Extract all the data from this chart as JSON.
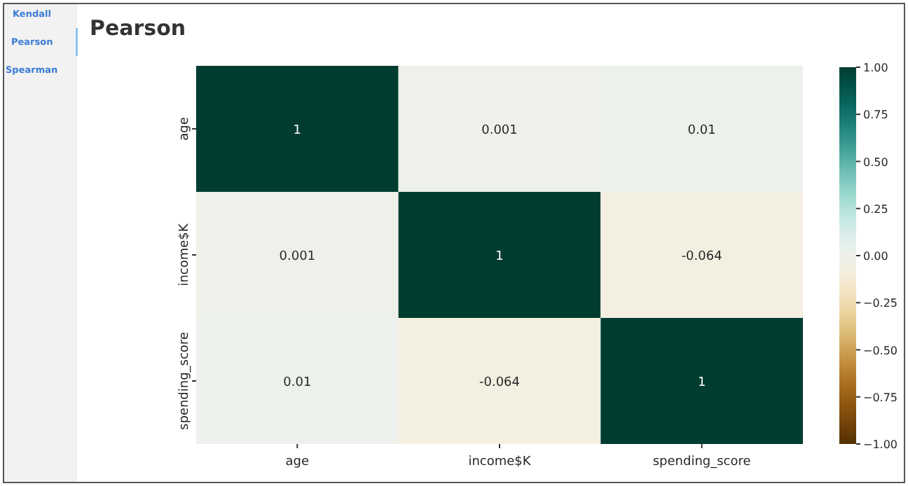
{
  "chart_data": {
    "type": "heatmap",
    "title": "Pearson",
    "categories": [
      "age",
      "income$K",
      "spending_score"
    ],
    "y_categories": [
      "age",
      "income$K",
      "spending_score"
    ],
    "cells": [
      [
        1,
        0.001,
        0.01
      ],
      [
        0.001,
        1,
        -0.064
      ],
      [
        0.01,
        -0.064,
        1
      ]
    ],
    "clim": [
      -1,
      1
    ],
    "data_labels": true,
    "cticks": [
      {
        "value": -1,
        "label": "−1.00"
      },
      {
        "value": -0.75,
        "label": "−0.75"
      },
      {
        "value": -0.5,
        "label": "−0.50"
      },
      {
        "value": -0.25,
        "label": "−0.25"
      },
      {
        "value": 0,
        "label": "0.00"
      },
      {
        "value": 0.25,
        "label": "0.25"
      },
      {
        "value": 0.5,
        "label": "0.50"
      },
      {
        "value": 0.75,
        "label": "0.75"
      },
      {
        "value": 1,
        "label": "1.00"
      }
    ],
    "annotations": [
      "Kendall",
      "Pearson",
      "Spearman"
    ]
  }
}
